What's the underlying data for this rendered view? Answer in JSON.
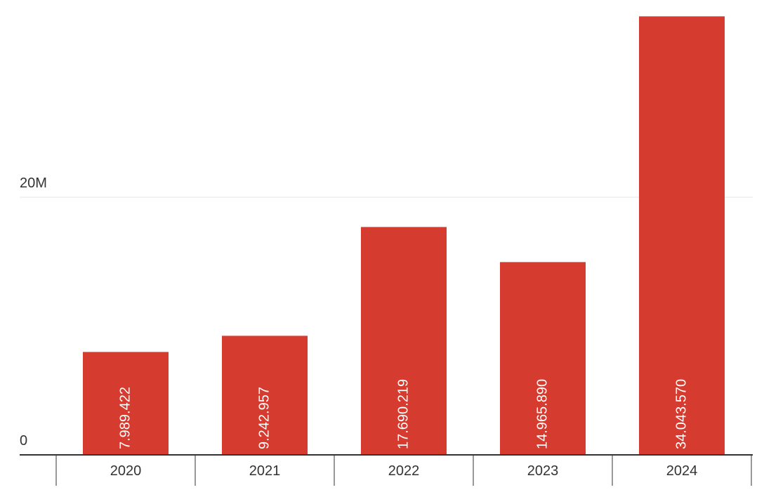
{
  "chart_data": {
    "type": "bar",
    "categories": [
      "2020",
      "2021",
      "2022",
      "2023",
      "2024"
    ],
    "values": [
      7989422,
      9242957,
      17690219,
      14965890,
      34043570
    ],
    "value_labels": [
      "7.989.422",
      "9.242.957",
      "17.690.219",
      "14.965.890",
      "34.043.570"
    ],
    "color": "#d63b2f",
    "ylim": [
      0,
      35000000
    ],
    "yticks": [
      0,
      {
        "value": 20000000,
        "label": "20M"
      }
    ],
    "grid": true
  }
}
